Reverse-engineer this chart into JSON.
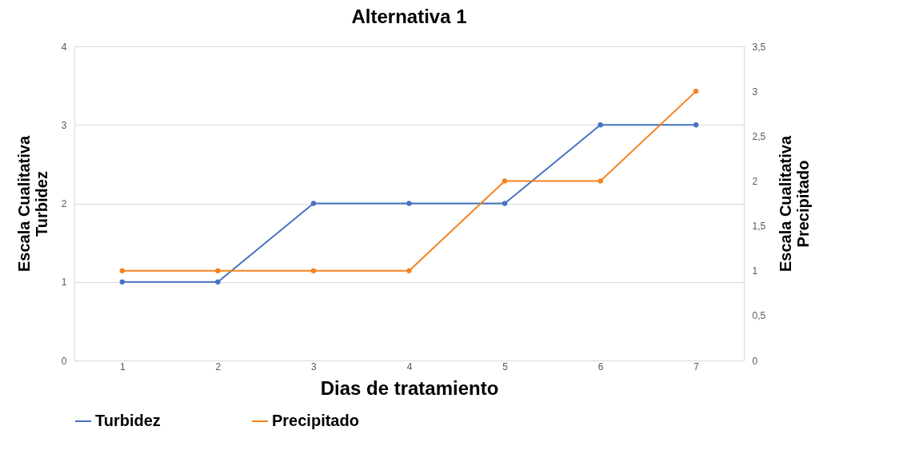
{
  "chart_data": {
    "type": "line",
    "title": "Alternativa 1",
    "xlabel": "Dias de tratamiento",
    "ylabel": "Escala Cualitativa Turbidez",
    "y2label": "Escala Cualitativa Precipitado",
    "categories": [
      "1",
      "2",
      "3",
      "4",
      "5",
      "6",
      "7"
    ],
    "series": [
      {
        "name": "Turbidez",
        "color": "#4472c4",
        "values": [
          1,
          1,
          2,
          2,
          2,
          3,
          3
        ]
      },
      {
        "name": "Precipitado",
        "color": "#f5821f",
        "axis": "y2",
        "values": [
          1,
          1,
          1,
          1,
          2,
          2,
          3
        ]
      }
    ],
    "ylim": [
      0,
      4
    ],
    "yticks": [
      0,
      1,
      2,
      3,
      4
    ],
    "y2lim": [
      0,
      3.5
    ],
    "y2ticks": [
      0,
      {
        "value": 0.5,
        "label": "0,5"
      },
      1,
      {
        "value": 1.5,
        "label": "1,5"
      },
      2,
      {
        "value": 2.5,
        "label": "2,5"
      },
      3,
      {
        "value": 3.5,
        "label": "3,5"
      }
    ],
    "grid": "y",
    "legend": "bottom",
    "marker": "circle",
    "line_style": "solid"
  }
}
